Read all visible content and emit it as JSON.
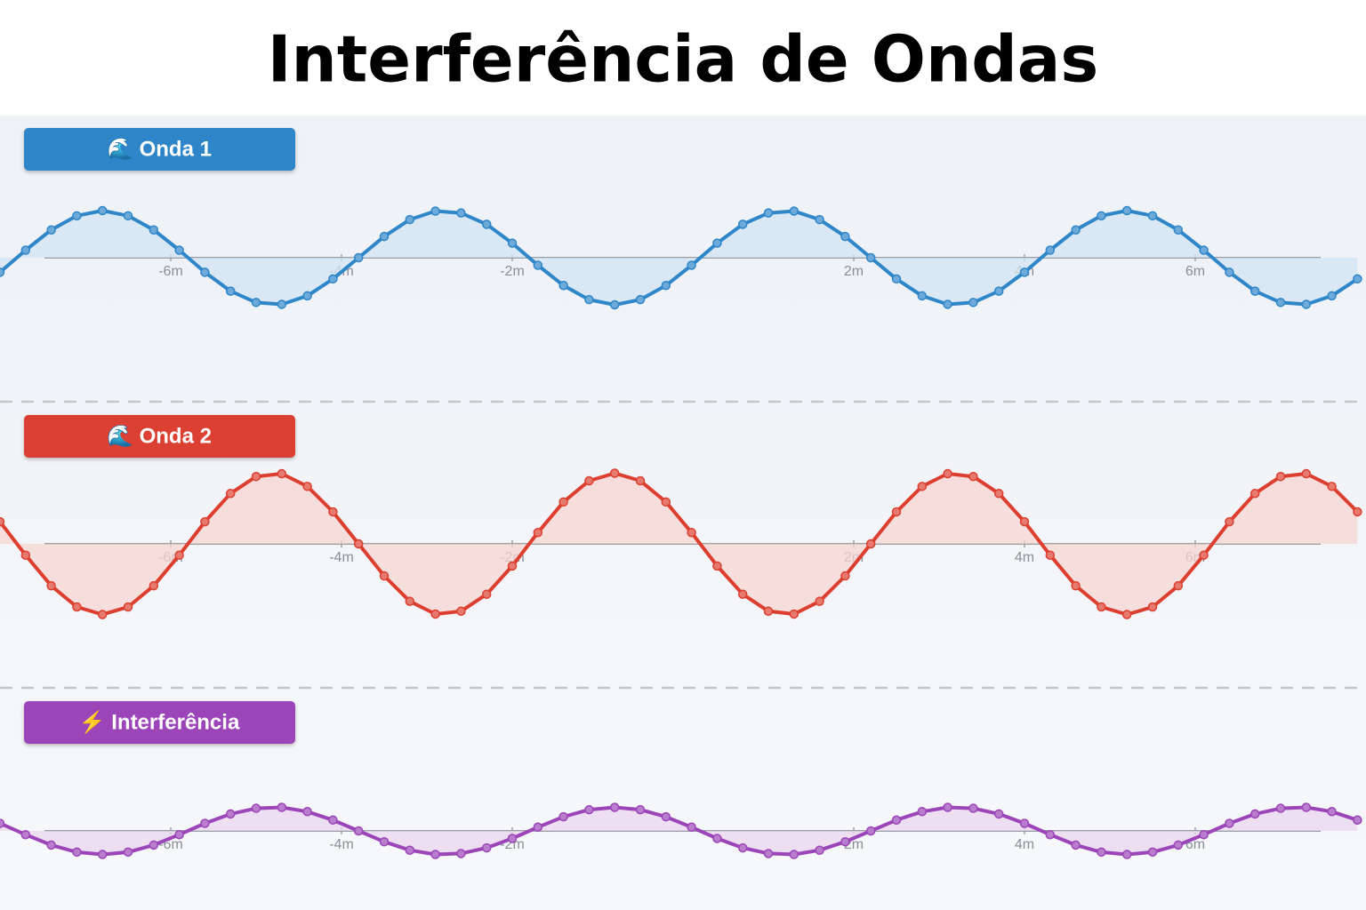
{
  "title": "Interferência de Ondas",
  "chart_data": [
    {
      "type": "line",
      "title": "🌊 Onda 1",
      "color": "#2f86c9",
      "x": [
        -8,
        -7.7,
        -7.4,
        -7.1,
        -6.8,
        -6.5,
        -6.2,
        -5.9,
        -5.6,
        -5.3,
        -5,
        -4.7,
        -4.4,
        -4.1,
        -3.8,
        -3.5,
        -3.2,
        -2.9,
        -2.6,
        -2.3,
        -2,
        -1.7,
        -1.4,
        -1.1,
        -0.8,
        -0.5,
        -0.2,
        0.1,
        0.4,
        0.7,
        1,
        1.3,
        1.6,
        1.9,
        2.2,
        2.5,
        2.8,
        3.1,
        3.4,
        3.7,
        4,
        4.3,
        4.6,
        4.9,
        5.2,
        5.5,
        5.8,
        6.1,
        6.4,
        6.7,
        7,
        7.3,
        7.6,
        7.9
      ],
      "values": [
        -0.31,
        0.16,
        0.59,
        0.89,
        1,
        0.89,
        0.59,
        0.16,
        -0.31,
        -0.71,
        -0.95,
        -0.99,
        -0.81,
        -0.45,
        0,
        0.45,
        0.81,
        0.99,
        0.95,
        0.71,
        0.31,
        -0.16,
        -0.59,
        -0.89,
        -1,
        -0.89,
        -0.59,
        -0.16,
        0.31,
        0.71,
        0.95,
        0.99,
        0.81,
        0.45,
        0,
        -0.45,
        -0.81,
        -0.99,
        -0.95,
        -0.71,
        -0.31,
        0.16,
        0.59,
        0.89,
        1,
        0.89,
        0.59,
        0.16,
        -0.31,
        -0.71,
        -0.95,
        -0.99,
        -0.81,
        -0.45
      ],
      "xlim": [
        -8,
        8
      ],
      "ylim": [
        -3,
        3
      ],
      "xticks": [
        {
          "value": -6,
          "label": "-6m"
        },
        {
          "value": -4,
          "label": "-4m"
        },
        {
          "value": -2,
          "label": "-2m"
        },
        {
          "value": 2,
          "label": "2m"
        },
        {
          "value": 4,
          "label": "4m"
        },
        {
          "value": 6,
          "label": "6m"
        }
      ]
    },
    {
      "type": "line",
      "title": "🌊 Onda 2",
      "color": "#dc3f30",
      "x": [
        -8,
        -7.7,
        -7.4,
        -7.1,
        -6.8,
        -6.5,
        -6.2,
        -5.9,
        -5.6,
        -5.3,
        -5,
        -4.7,
        -4.4,
        -4.1,
        -3.8,
        -3.5,
        -3.2,
        -2.9,
        -2.6,
        -2.3,
        -2,
        -1.7,
        -1.4,
        -1.1,
        -0.8,
        -0.5,
        -0.2,
        0.1,
        0.4,
        0.7,
        1,
        1.3,
        1.6,
        1.9,
        2.2,
        2.5,
        2.8,
        3.1,
        3.4,
        3.7,
        4,
        4.3,
        4.6,
        4.9,
        5.2,
        5.5,
        5.8,
        6.1,
        6.4,
        6.7,
        7,
        7.3,
        7.6,
        7.9
      ],
      "values": [
        0.47,
        -0.24,
        -0.89,
        -1.34,
        -1.5,
        -1.34,
        -0.89,
        -0.24,
        0.47,
        1.07,
        1.43,
        1.49,
        1.22,
        0.68,
        0,
        -0.68,
        -1.22,
        -1.49,
        -1.43,
        -1.07,
        -0.47,
        0.24,
        0.89,
        1.34,
        1.5,
        1.34,
        0.89,
        0.24,
        -0.47,
        -1.07,
        -1.43,
        -1.49,
        -1.22,
        -0.68,
        0,
        0.68,
        1.22,
        1.49,
        1.43,
        1.07,
        0.47,
        -0.24,
        -0.89,
        -1.34,
        -1.5,
        -1.34,
        -0.89,
        -0.24,
        0.47,
        1.07,
        1.43,
        1.49,
        1.22,
        0.68
      ],
      "xlim": [
        -8,
        8
      ],
      "ylim": [
        -3,
        3
      ],
      "xticks": [
        {
          "value": -6,
          "label": "-6m"
        },
        {
          "value": -4,
          "label": "-4m"
        },
        {
          "value": -2,
          "label": "-2m"
        },
        {
          "value": 2,
          "label": "2m"
        },
        {
          "value": 4,
          "label": "4m"
        },
        {
          "value": 6,
          "label": "6m"
        }
      ]
    },
    {
      "type": "line",
      "title": "⚡ Interferência",
      "color": "#9b45b8",
      "x": [
        -8,
        -7.7,
        -7.4,
        -7.1,
        -6.8,
        -6.5,
        -6.2,
        -5.9,
        -5.6,
        -5.3,
        -5,
        -4.7,
        -4.4,
        -4.1,
        -3.8,
        -3.5,
        -3.2,
        -2.9,
        -2.6,
        -2.3,
        -2,
        -1.7,
        -1.4,
        -1.1,
        -0.8,
        -0.5,
        -0.2,
        0.1,
        0.4,
        0.7,
        1,
        1.3,
        1.6,
        1.9,
        2.2,
        2.5,
        2.8,
        3.1,
        3.4,
        3.7,
        4,
        4.3,
        4.6,
        4.9,
        5.2,
        5.5,
        5.8,
        6.1,
        6.4,
        6.7,
        7,
        7.3,
        7.6,
        7.9
      ],
      "values": [
        0.16,
        -0.08,
        -0.3,
        -0.45,
        -0.5,
        -0.45,
        -0.3,
        -0.08,
        0.16,
        0.36,
        0.48,
        0.5,
        0.41,
        0.23,
        0,
        -0.23,
        -0.41,
        -0.5,
        -0.48,
        -0.36,
        -0.16,
        0.08,
        0.3,
        0.45,
        0.5,
        0.45,
        0.3,
        0.08,
        -0.16,
        -0.36,
        -0.48,
        -0.5,
        -0.41,
        -0.23,
        0,
        0.23,
        0.41,
        0.5,
        0.48,
        0.36,
        0.16,
        -0.08,
        -0.3,
        -0.45,
        -0.5,
        -0.45,
        -0.3,
        -0.08,
        0.16,
        0.36,
        0.48,
        0.5,
        0.41,
        0.23
      ],
      "xlim": [
        -8,
        8
      ],
      "ylim": [
        -3,
        3
      ],
      "xticks": [
        {
          "value": -6,
          "label": "-6m"
        },
        {
          "value": -4,
          "label": "-4m"
        },
        {
          "value": -2,
          "label": "-2m"
        },
        {
          "value": 2,
          "label": "2m"
        },
        {
          "value": 4,
          "label": "4m"
        },
        {
          "value": 6,
          "label": "6m"
        }
      ]
    }
  ]
}
